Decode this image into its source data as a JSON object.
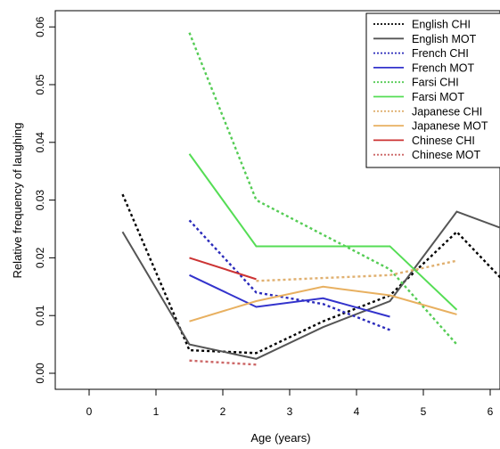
{
  "chart_data": {
    "type": "line",
    "title": "",
    "xlabel": "Age (years)",
    "ylabel": "Relative frequency of laughing",
    "xlim": [
      0,
      6.2
    ],
    "ylim": [
      0,
      0.062
    ],
    "x_ticks": [
      "0",
      "1",
      "2",
      "3",
      "4",
      "5",
      "6"
    ],
    "y_ticks": [
      "0.00",
      "0.01",
      "0.02",
      "0.03",
      "0.04",
      "0.05",
      "0.06"
    ],
    "legend_position": "top-right",
    "series": [
      {
        "name": "English CHI",
        "color": "#000000",
        "dash": "dotted",
        "x": [
          0.5,
          1.5,
          2.5,
          3.5,
          4.5,
          5.5,
          6.2
        ],
        "y": [
          0.031,
          0.004,
          0.0035,
          0.009,
          0.0135,
          0.0245,
          0.016
        ]
      },
      {
        "name": "English MOT",
        "color": "#555555",
        "dash": "solid",
        "x": [
          0.5,
          1.5,
          2.5,
          3.5,
          4.5,
          5.5,
          6.2
        ],
        "y": [
          0.0245,
          0.005,
          0.0025,
          0.008,
          0.0125,
          0.028,
          0.025
        ]
      },
      {
        "name": "French CHI",
        "color": "#2b2bbb",
        "dash": "dotted",
        "x": [
          1.5,
          2.5,
          3.5,
          4.5
        ],
        "y": [
          0.0265,
          0.014,
          0.012,
          0.0075
        ]
      },
      {
        "name": "French MOT",
        "color": "#3333cc",
        "dash": "solid",
        "x": [
          1.5,
          2.5,
          3.5,
          4.5
        ],
        "y": [
          0.017,
          0.0115,
          0.013,
          0.0098
        ]
      },
      {
        "name": "Farsi CHI",
        "color": "#55cc55",
        "dash": "dotted",
        "x": [
          1.5,
          2.5,
          4.5,
          5.5
        ],
        "y": [
          0.059,
          0.03,
          0.018,
          0.005
        ]
      },
      {
        "name": "Farsi MOT",
        "color": "#55dd55",
        "dash": "solid",
        "x": [
          1.5,
          2.5,
          3.5,
          4.5,
          5.5
        ],
        "y": [
          0.038,
          0.022,
          0.022,
          0.022,
          0.011
        ]
      },
      {
        "name": "Japanese CHI",
        "color": "#e0b070",
        "dash": "dotted",
        "x": [
          2.5,
          3.5,
          4.5,
          5.5
        ],
        "y": [
          0.016,
          0.0165,
          0.017,
          0.0195
        ]
      },
      {
        "name": "Japanese MOT",
        "color": "#e8b060",
        "dash": "solid",
        "x": [
          1.5,
          2.5,
          3.5,
          4.5,
          5.5
        ],
        "y": [
          0.009,
          0.0125,
          0.015,
          0.0135,
          0.0102
        ]
      },
      {
        "name": "Chinese CHI",
        "color": "#cc3333",
        "dash": "solid",
        "x": [
          1.5,
          2.5
        ],
        "y": [
          0.02,
          0.0163
        ]
      },
      {
        "name": "Chinese MOT",
        "color": "#cc6666",
        "dash": "dotted",
        "x": [
          1.5,
          2.5
        ],
        "y": [
          0.0022,
          0.0015
        ]
      }
    ]
  }
}
